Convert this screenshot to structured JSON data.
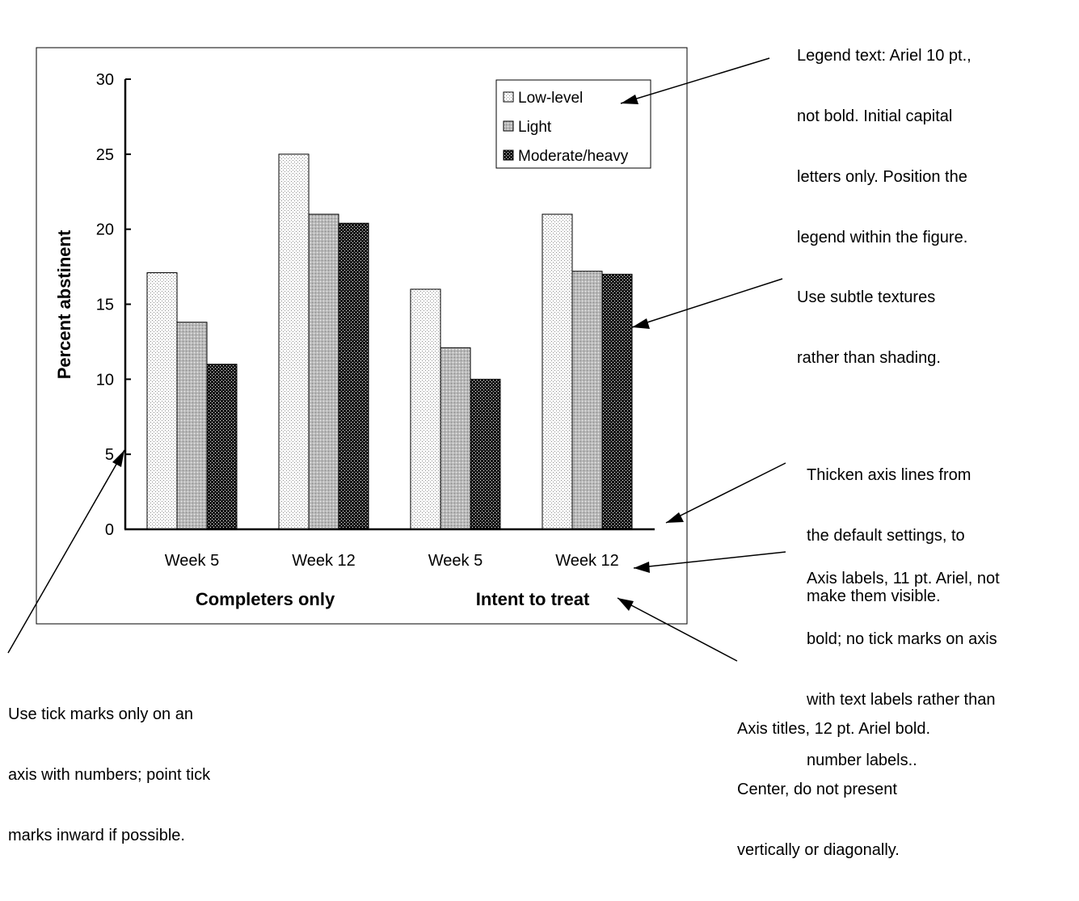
{
  "chart_data": {
    "type": "bar",
    "categories": [
      "Week 5",
      "Week 12",
      "Week 5",
      "Week 12"
    ],
    "category_groups": [
      "Completers only",
      "Intent to treat"
    ],
    "series": [
      {
        "name": "Low-level",
        "values": [
          17.1,
          25.0,
          16.0,
          21.0
        ]
      },
      {
        "name": "Light",
        "values": [
          13.8,
          21.0,
          12.1,
          17.2
        ]
      },
      {
        "name": "Moderate/heavy",
        "values": [
          11.0,
          20.4,
          10.0,
          17.0
        ]
      }
    ],
    "ylabel": "Percent abstinent",
    "ylim": [
      0,
      30
    ],
    "yticks": [
      "0",
      "5",
      "10",
      "15",
      "20",
      "25",
      "30"
    ],
    "grid": false,
    "legend_position": "top-right"
  },
  "annotations": [
    {
      "id": "legend-note",
      "lines": [
        "Legend text: Ariel 10 pt.,",
        "not bold. Initial capital",
        "letters only. Position the",
        "legend within the figure."
      ]
    },
    {
      "id": "texture-note",
      "lines": [
        "Use subtle textures",
        "rather than shading."
      ]
    },
    {
      "id": "axis-line-note",
      "lines": [
        "Thicken axis lines from",
        "the default settings, to",
        "make them visible."
      ]
    },
    {
      "id": "axis-labels-note",
      "lines": [
        "Axis labels, 11 pt. Ariel, not",
        "bold; no tick marks on axis",
        "with text labels rather than",
        "number labels.."
      ]
    },
    {
      "id": "tick-note",
      "lines": [
        "Use tick marks only on an",
        "axis with numbers; point tick",
        "marks inward if possible."
      ]
    },
    {
      "id": "axis-titles-note",
      "lines": [
        "Axis titles, 12 pt. Ariel bold.",
        "Center, do not present",
        "vertically or diagonally."
      ]
    }
  ]
}
